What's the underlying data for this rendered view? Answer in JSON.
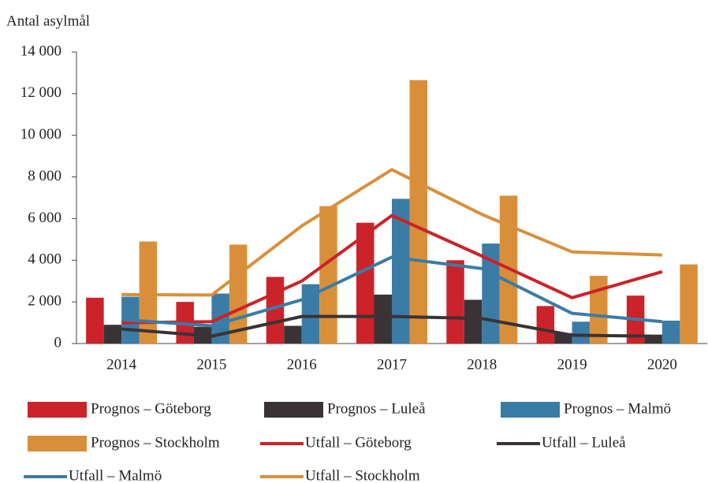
{
  "chart_data": {
    "type": "bar_line",
    "y_label": "Antal asylmål",
    "categories": [
      "2014",
      "2015",
      "2016",
      "2017",
      "2018",
      "2019",
      "2020"
    ],
    "ylim": [
      0,
      14000
    ],
    "yticks": [
      0,
      {
        "value": 2000,
        "label": "2 000"
      },
      {
        "value": 4000,
        "label": "4 000"
      },
      {
        "value": 6000,
        "label": "6 000"
      },
      {
        "value": 8000,
        "label": "8 000"
      },
      {
        "value": 10000,
        "label": "10 000"
      },
      {
        "value": 12000,
        "label": "12 000"
      },
      {
        "value": 14000,
        "label": "14 000"
      }
    ],
    "grid": false,
    "series": [
      {
        "name": "Prognos – Göteborg",
        "kind": "bar",
        "color": "#cc2229",
        "values": [
          2200,
          2000,
          3200,
          5800,
          4000,
          1800,
          2300
        ]
      },
      {
        "name": "Prognos – Luleå",
        "kind": "bar",
        "color": "#3a3336",
        "values": [
          900,
          800,
          850,
          2350,
          2100,
          500,
          400
        ]
      },
      {
        "name": "Prognos – Malmö",
        "kind": "bar",
        "color": "#3b7ca6",
        "values": [
          2250,
          2400,
          2850,
          6950,
          4800,
          1050,
          1100
        ]
      },
      {
        "name": "Prognos – Stockholm",
        "kind": "bar",
        "color": "#d98f3a",
        "values": [
          4900,
          4750,
          6600,
          12650,
          7100,
          3250,
          3800
        ]
      },
      {
        "name": "Utfall – Göteborg",
        "kind": "line",
        "color": "#cc2229",
        "values": [
          1000,
          1050,
          3000,
          6150,
          4200,
          2200,
          3450
        ]
      },
      {
        "name": "Utfall – Luleå",
        "kind": "line",
        "color": "#3a3336",
        "values": [
          700,
          350,
          1300,
          1300,
          1200,
          400,
          350
        ]
      },
      {
        "name": "Utfall – Malmö",
        "kind": "line",
        "color": "#3b7ca6",
        "values": [
          1150,
          850,
          2100,
          4150,
          3600,
          1450,
          1050
        ]
      },
      {
        "name": "Utfall – Stockholm",
        "kind": "line",
        "color": "#d98f3a",
        "values": [
          2350,
          2330,
          5650,
          8350,
          6200,
          4400,
          4250
        ]
      }
    ]
  }
}
